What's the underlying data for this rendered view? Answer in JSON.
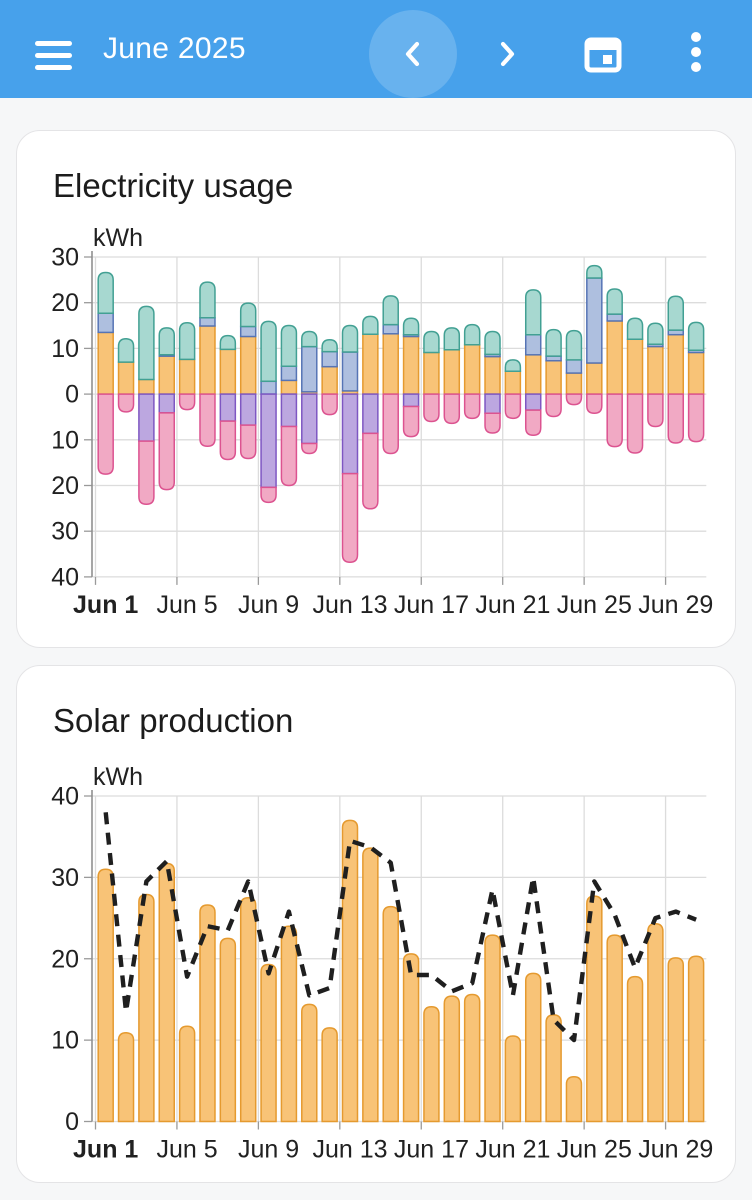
{
  "header": {
    "title": "June 2025",
    "bg_color": "#47a1eb",
    "buttons": {
      "menu": "hamburger-menu",
      "previous": "previous-period",
      "next": "next-period",
      "calendar": "pick-date",
      "more": "more-options"
    }
  },
  "cards": [
    {
      "title": "Electricity usage"
    },
    {
      "title": "Solar production"
    }
  ],
  "chart_data": [
    {
      "type": "bar",
      "title": "Electricity usage",
      "ylabel": "kWh",
      "ylim": [
        -40,
        30
      ],
      "y_ticks": [
        30,
        20,
        10,
        0,
        -10,
        -20,
        -30,
        -40
      ],
      "y_tick_labels_abs": true,
      "grid": true,
      "categories": [
        "Jun 1",
        "Jun 2",
        "Jun 3",
        "Jun 4",
        "Jun 5",
        "Jun 6",
        "Jun 7",
        "Jun 8",
        "Jun 9",
        "Jun 10",
        "Jun 11",
        "Jun 12",
        "Jun 13",
        "Jun 14",
        "Jun 15",
        "Jun 16",
        "Jun 17",
        "Jun 18",
        "Jun 19",
        "Jun 20",
        "Jun 21",
        "Jun 22",
        "Jun 23",
        "Jun 24",
        "Jun 25",
        "Jun 26",
        "Jun 27",
        "Jun 28",
        "Jun 29",
        "Jun 30"
      ],
      "x_tick_labels": [
        "Jun 1",
        "Jun 5",
        "Jun 9",
        "Jun 13",
        "Jun 17",
        "Jun 21",
        "Jun 25",
        "Jun 29"
      ],
      "x_tick_positions": [
        1,
        5,
        9,
        13,
        17,
        21,
        25,
        29
      ],
      "series": [
        {
          "name": "consumption-orange",
          "stack": "positive",
          "fill": "#f8c377",
          "stroke": "#e59a2f",
          "values": [
            13.5,
            7.0,
            3.2,
            8.3,
            7.6,
            14.9,
            9.8,
            12.6,
            0,
            3.0,
            0.5,
            6.0,
            0.7,
            13.1,
            13.2,
            12.6,
            9.1,
            9.7,
            10.8,
            8.2,
            5.0,
            8.6,
            7.3,
            4.6,
            6.8,
            16.0,
            12.0,
            10.4,
            13.0,
            9.1
          ]
        },
        {
          "name": "consumption-blue",
          "stack": "positive",
          "fill": "#aebfdf",
          "stroke": "#5674b5",
          "values": [
            4.2,
            0,
            0,
            0.3,
            0,
            1.8,
            0,
            2.2,
            2.8,
            3.1,
            9.9,
            3.3,
            8.5,
            0,
            2.0,
            0.4,
            0,
            0,
            0,
            0.5,
            0,
            4.4,
            1.0,
            2.9,
            18.6,
            1.5,
            0,
            0.5,
            1.0,
            0.5
          ]
        },
        {
          "name": "consumption-teal",
          "stack": "positive",
          "fill": "#a7d8d0",
          "stroke": "#42a093",
          "values": [
            8.9,
            5.1,
            16.0,
            5.9,
            8.0,
            7.8,
            3.0,
            5.1,
            13.1,
            8.9,
            3.3,
            2.6,
            5.8,
            3.9,
            6.3,
            3.6,
            4.6,
            4.8,
            4.4,
            5.0,
            2.5,
            9.8,
            5.8,
            6.4,
            2.7,
            5.5,
            4.6,
            4.6,
            7.4,
            6.1
          ]
        },
        {
          "name": "battery-charge-purple",
          "stack": "negative",
          "fill": "#bca7e0",
          "stroke": "#7e57c2",
          "values": [
            0,
            0,
            -10.3,
            -4.1,
            0,
            0,
            -5.9,
            -6.8,
            -20.4,
            -7.1,
            -10.8,
            0,
            -17.4,
            -8.6,
            0,
            -2.7,
            0,
            0,
            0,
            -4.2,
            0,
            -3.5,
            0,
            0,
            0,
            0,
            0,
            0,
            0,
            0
          ]
        },
        {
          "name": "grid-return-pink",
          "stack": "negative",
          "fill": "#f1a9c4",
          "stroke": "#dc5390",
          "values": [
            -17.5,
            -3.9,
            -13.8,
            -16.8,
            -3.4,
            -11.4,
            -8.4,
            -7.3,
            -3.3,
            -12.9,
            -2.2,
            -4.5,
            -19.4,
            -16.5,
            -13.0,
            -6.6,
            -6.0,
            -6.4,
            -5.3,
            -4.3,
            -5.3,
            -5.5,
            -4.9,
            -2.3,
            -4.2,
            -11.5,
            -12.9,
            -7.1,
            -10.7,
            -10.4
          ]
        }
      ]
    },
    {
      "type": "bar+line",
      "title": "Solar production",
      "ylabel": "kWh",
      "ylim": [
        0,
        40
      ],
      "y_ticks": [
        40,
        30,
        20,
        10,
        0
      ],
      "y_tick_labels_abs": true,
      "grid": true,
      "categories": [
        "Jun 1",
        "Jun 2",
        "Jun 3",
        "Jun 4",
        "Jun 5",
        "Jun 6",
        "Jun 7",
        "Jun 8",
        "Jun 9",
        "Jun 10",
        "Jun 11",
        "Jun 12",
        "Jun 13",
        "Jun 14",
        "Jun 15",
        "Jun 16",
        "Jun 17",
        "Jun 18",
        "Jun 19",
        "Jun 20",
        "Jun 21",
        "Jun 22",
        "Jun 23",
        "Jun 24",
        "Jun 25",
        "Jun 26",
        "Jun 27",
        "Jun 28",
        "Jun 29",
        "Jun 30"
      ],
      "x_tick_labels": [
        "Jun 1",
        "Jun 5",
        "Jun 9",
        "Jun 13",
        "Jun 17",
        "Jun 21",
        "Jun 25",
        "Jun 29"
      ],
      "x_tick_positions": [
        1,
        5,
        9,
        13,
        17,
        21,
        25,
        29
      ],
      "series": [
        {
          "name": "solar-production-orange",
          "type": "bar",
          "fill": "#f8c377",
          "stroke": "#e59a2f",
          "values": [
            31.0,
            10.9,
            27.9,
            31.7,
            11.7,
            26.6,
            22.5,
            27.5,
            19.3,
            24.0,
            14.4,
            11.5,
            37.0,
            33.6,
            26.4,
            20.6,
            14.1,
            15.4,
            15.6,
            22.9,
            10.5,
            18.2,
            13.1,
            5.5,
            27.7,
            22.9,
            17.8,
            24.3,
            20.1,
            20.3
          ]
        },
        {
          "name": "solar-forecast-dashed",
          "type": "line",
          "style": "dashed",
          "color": "#1f1f1f",
          "values": [
            38.0,
            13.5,
            29.5,
            32.0,
            17.8,
            24.0,
            23.5,
            29.5,
            18.2,
            25.8,
            15.5,
            16.4,
            34.5,
            33.7,
            31.8,
            18.0,
            18.0,
            16.0,
            17.0,
            28.5,
            15.5,
            30.0,
            12.5,
            10.0,
            29.5,
            25.4,
            18.9,
            25.0,
            25.8,
            24.8
          ]
        }
      ]
    }
  ]
}
